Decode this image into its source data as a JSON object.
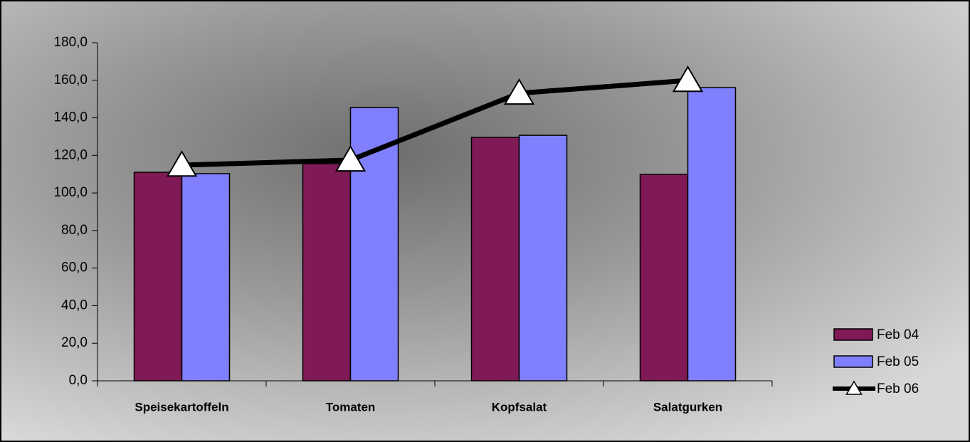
{
  "chart_data": {
    "type": "bar",
    "categories": [
      "Speisekartoffeln",
      "Tomaten",
      "Kopfsalat",
      "Salatgurken"
    ],
    "series": [
      {
        "name": "Feb 04",
        "color": "#7f1a56",
        "values": [
          111.0,
          115.6,
          129.6,
          109.9
        ]
      },
      {
        "name": "Feb 05",
        "color": "#8080ff",
        "values": [
          110.3,
          145.5,
          130.7,
          156.1
        ]
      },
      {
        "name": "Feb 06",
        "color": "#000000",
        "type": "line",
        "marker": "triangle",
        "values": [
          114.8,
          117.5,
          153.1,
          159.9
        ]
      }
    ],
    "ylim": [
      0,
      180
    ],
    "yticks": [
      {
        "value": 0,
        "label": "0,0"
      },
      {
        "value": 20,
        "label": "20,0"
      },
      {
        "value": 40,
        "label": "40,0"
      },
      {
        "value": 60,
        "label": "60,0"
      },
      {
        "value": 80,
        "label": "80,0"
      },
      {
        "value": 100,
        "label": "100,0"
      },
      {
        "value": 120,
        "label": "120,0"
      },
      {
        "value": 140,
        "label": "140,0"
      },
      {
        "value": 160,
        "label": "160,0"
      },
      {
        "value": 180,
        "label": "180,0"
      }
    ],
    "legend": "lower right"
  }
}
